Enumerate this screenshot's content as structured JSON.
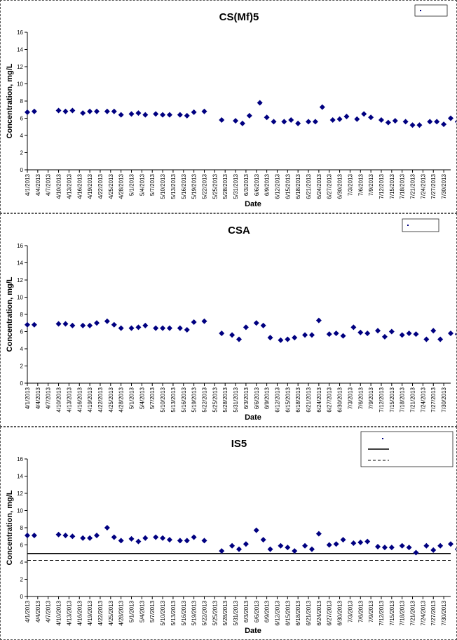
{
  "chart_data": [
    {
      "type": "scatter",
      "title": "CS(Mf)5",
      "xlabel": "Date",
      "ylabel": "Concentration, mg/L",
      "ylim": [
        0,
        16
      ],
      "yticks": [
        0,
        2,
        4,
        6,
        8,
        10,
        12,
        14,
        16
      ],
      "grid": false,
      "legend_position": "top-right",
      "xlim": [
        "4/1/2013",
        "8/1/2013"
      ],
      "xticks": [
        "4/1/2013",
        "4/4/2013",
        "4/7/2013",
        "4/10/2013",
        "4/13/2013",
        "4/16/2013",
        "4/19/2013",
        "4/22/2013",
        "4/25/2013",
        "4/28/2013",
        "5/1/2013",
        "5/4/2013",
        "5/7/2013",
        "5/10/2013",
        "5/13/2013",
        "5/16/2013",
        "5/19/2013",
        "5/22/2013",
        "5/25/2013",
        "5/28/2013",
        "5/31/2013",
        "6/3/2013",
        "6/6/2013",
        "6/9/2013",
        "6/12/2013",
        "6/15/2013",
        "6/18/2013",
        "6/21/2013",
        "6/24/2013",
        "6/27/2013",
        "6/30/2013",
        "7/3/2013",
        "7/6/2013",
        "7/9/2013",
        "7/12/2013",
        "7/15/2013",
        "7/18/2013",
        "7/21/2013",
        "7/24/2013",
        "7/27/2013",
        "7/30/2013"
      ],
      "series": [
        {
          "color": "#000080",
          "marker": "diamond",
          "points": [
            [
              "4/1/2013",
              6.7
            ],
            [
              "4/3/2013",
              6.8
            ],
            [
              "4/10/2013",
              6.9
            ],
            [
              "4/12/2013",
              6.8
            ],
            [
              "4/14/2013",
              6.9
            ],
            [
              "4/17/2013",
              6.6
            ],
            [
              "4/19/2013",
              6.8
            ],
            [
              "4/21/2013",
              6.8
            ],
            [
              "4/24/2013",
              6.8
            ],
            [
              "4/26/2013",
              6.8
            ],
            [
              "4/28/2013",
              6.4
            ],
            [
              "5/1/2013",
              6.5
            ],
            [
              "5/3/2013",
              6.6
            ],
            [
              "5/5/2013",
              6.4
            ],
            [
              "5/8/2013",
              6.5
            ],
            [
              "5/10/2013",
              6.4
            ],
            [
              "5/12/2013",
              6.4
            ],
            [
              "5/15/2013",
              6.4
            ],
            [
              "5/17/2013",
              6.3
            ],
            [
              "5/19/2013",
              6.7
            ],
            [
              "5/22/2013",
              6.8
            ],
            [
              "5/27/2013",
              5.8
            ],
            [
              "5/31/2013",
              5.7
            ],
            [
              "6/2/2013",
              5.4
            ],
            [
              "6/4/2013",
              6.3
            ],
            [
              "6/7/2013",
              7.8
            ],
            [
              "6/9/2013",
              6.1
            ],
            [
              "6/11/2013",
              5.6
            ],
            [
              "6/14/2013",
              5.6
            ],
            [
              "6/16/2013",
              5.8
            ],
            [
              "6/18/2013",
              5.4
            ],
            [
              "6/21/2013",
              5.6
            ],
            [
              "6/23/2013",
              5.6
            ],
            [
              "6/25/2013",
              7.3
            ],
            [
              "6/28/2013",
              5.8
            ],
            [
              "6/30/2013",
              5.9
            ],
            [
              "7/2/2013",
              6.2
            ],
            [
              "7/5/2013",
              5.9
            ],
            [
              "7/7/2013",
              6.5
            ],
            [
              "7/9/2013",
              6.1
            ],
            [
              "7/12/2013",
              5.8
            ],
            [
              "7/14/2013",
              5.5
            ],
            [
              "7/16/2013",
              5.7
            ],
            [
              "7/19/2013",
              5.6
            ],
            [
              "7/21/2013",
              5.2
            ],
            [
              "7/23/2013",
              5.2
            ],
            [
              "7/26/2013",
              5.6
            ],
            [
              "7/28/2013",
              5.6
            ],
            [
              "7/30/2013",
              5.3
            ],
            [
              "8/1/2013",
              6.0
            ],
            [
              "8/3/2013",
              5.6
            ]
          ]
        }
      ]
    },
    {
      "type": "scatter",
      "title": "CSA",
      "xlabel": "Date",
      "ylabel": "Concentration, mg/L",
      "ylim": [
        0,
        16
      ],
      "yticks": [
        0,
        2,
        4,
        6,
        8,
        10,
        12,
        14,
        16
      ],
      "grid": false,
      "legend_position": "top-right",
      "xlim": [
        "4/1/2013",
        "8/1/2013"
      ],
      "xticks": [
        "4/1/2013",
        "4/4/2013",
        "4/7/2013",
        "4/10/2013",
        "4/13/2013",
        "4/16/2013",
        "4/19/2013",
        "4/22/2013",
        "4/25/2013",
        "4/28/2013",
        "5/1/2013",
        "5/4/2013",
        "5/7/2013",
        "5/10/2013",
        "5/13/2013",
        "5/16/2013",
        "5/19/2013",
        "5/22/2013",
        "5/25/2013",
        "5/28/2013",
        "5/31/2013",
        "6/3/2013",
        "6/6/2013",
        "6/9/2013",
        "6/12/2013",
        "6/15/2013",
        "6/18/2013",
        "6/21/2013",
        "6/24/2013",
        "6/27/2013",
        "6/30/2013",
        "7/3/2013",
        "7/6/2013",
        "7/9/2013",
        "7/12/2013",
        "7/15/2013",
        "7/18/2013",
        "7/21/2013",
        "7/24/2013",
        "7/27/2013",
        "7/30/2013"
      ],
      "series": [
        {
          "color": "#000080",
          "marker": "diamond",
          "points": [
            [
              "4/1/2013",
              6.8
            ],
            [
              "4/3/2013",
              6.8
            ],
            [
              "4/10/2013",
              6.9
            ],
            [
              "4/12/2013",
              6.9
            ],
            [
              "4/14/2013",
              6.7
            ],
            [
              "4/17/2013",
              6.7
            ],
            [
              "4/19/2013",
              6.7
            ],
            [
              "4/21/2013",
              7.0
            ],
            [
              "4/24/2013",
              7.2
            ],
            [
              "4/26/2013",
              6.8
            ],
            [
              "4/28/2013",
              6.4
            ],
            [
              "5/1/2013",
              6.4
            ],
            [
              "5/3/2013",
              6.5
            ],
            [
              "5/5/2013",
              6.7
            ],
            [
              "5/8/2013",
              6.4
            ],
            [
              "5/10/2013",
              6.4
            ],
            [
              "5/12/2013",
              6.4
            ],
            [
              "5/15/2013",
              6.4
            ],
            [
              "5/17/2013",
              6.2
            ],
            [
              "5/19/2013",
              7.1
            ],
            [
              "5/22/2013",
              7.2
            ],
            [
              "5/27/2013",
              5.8
            ],
            [
              "5/30/2013",
              5.6
            ],
            [
              "6/1/2013",
              5.1
            ],
            [
              "6/3/2013",
              6.5
            ],
            [
              "6/6/2013",
              7.0
            ],
            [
              "6/8/2013",
              6.7
            ],
            [
              "6/10/2013",
              5.3
            ],
            [
              "6/13/2013",
              5.0
            ],
            [
              "6/15/2013",
              5.1
            ],
            [
              "6/17/2013",
              5.3
            ],
            [
              "6/20/2013",
              5.6
            ],
            [
              "6/22/2013",
              5.6
            ],
            [
              "6/24/2013",
              7.3
            ],
            [
              "6/27/2013",
              5.7
            ],
            [
              "6/29/2013",
              5.8
            ],
            [
              "7/1/2013",
              5.5
            ],
            [
              "7/4/2013",
              6.5
            ],
            [
              "7/6/2013",
              5.9
            ],
            [
              "7/8/2013",
              5.8
            ],
            [
              "7/11/2013",
              6.1
            ],
            [
              "7/13/2013",
              5.4
            ],
            [
              "7/15/2013",
              6.0
            ],
            [
              "7/18/2013",
              5.6
            ],
            [
              "7/20/2013",
              5.8
            ],
            [
              "7/22/2013",
              5.7
            ],
            [
              "7/25/2013",
              5.1
            ],
            [
              "7/27/2013",
              6.1
            ],
            [
              "7/29/2013",
              5.1
            ],
            [
              "8/1/2013",
              5.8
            ],
            [
              "8/3/2013",
              5.7
            ]
          ]
        }
      ]
    },
    {
      "type": "scatter",
      "title": "IS5",
      "xlabel": "Date",
      "ylabel": "Concentration, mg/L",
      "ylim": [
        0,
        16
      ],
      "yticks": [
        0,
        2,
        4,
        6,
        8,
        10,
        12,
        14,
        16
      ],
      "grid": false,
      "legend_position": "top-right",
      "xlim": [
        "4/1/2013",
        "8/1/2013"
      ],
      "xticks": [
        "4/1/2013",
        "4/4/2013",
        "4/7/2013",
        "4/10/2013",
        "4/13/2013",
        "4/16/2013",
        "4/19/2013",
        "4/22/2013",
        "4/25/2013",
        "4/28/2013",
        "5/1/2013",
        "5/4/2013",
        "5/7/2013",
        "5/10/2013",
        "5/13/2013",
        "5/16/2013",
        "5/19/2013",
        "5/22/2013",
        "5/25/2013",
        "5/28/2013",
        "5/31/2013",
        "6/3/2013",
        "6/6/2013",
        "6/9/2013",
        "6/12/2013",
        "6/15/2013",
        "6/18/2013",
        "6/21/2013",
        "6/24/2013",
        "6/27/2013",
        "6/30/2013",
        "7/3/2013",
        "7/6/2013",
        "7/9/2013",
        "7/12/2013",
        "7/15/2013",
        "7/18/2013",
        "7/21/2013",
        "7/24/2013",
        "7/27/2013",
        "7/30/2013"
      ],
      "reference_lines": [
        {
          "y": 5.0,
          "style": "solid",
          "color": "#000000"
        },
        {
          "y": 4.2,
          "style": "dashed",
          "color": "#000000"
        }
      ],
      "series": [
        {
          "color": "#000080",
          "marker": "diamond",
          "points": [
            [
              "4/1/2013",
              7.1
            ],
            [
              "4/3/2013",
              7.1
            ],
            [
              "4/10/2013",
              7.2
            ],
            [
              "4/12/2013",
              7.1
            ],
            [
              "4/14/2013",
              7.0
            ],
            [
              "4/17/2013",
              6.8
            ],
            [
              "4/19/2013",
              6.8
            ],
            [
              "4/21/2013",
              7.1
            ],
            [
              "4/24/2013",
              8.0
            ],
            [
              "4/26/2013",
              6.9
            ],
            [
              "4/28/2013",
              6.5
            ],
            [
              "5/1/2013",
              6.7
            ],
            [
              "5/3/2013",
              6.4
            ],
            [
              "5/5/2013",
              6.8
            ],
            [
              "5/8/2013",
              6.9
            ],
            [
              "5/10/2013",
              6.8
            ],
            [
              "5/12/2013",
              6.6
            ],
            [
              "5/15/2013",
              6.5
            ],
            [
              "5/17/2013",
              6.5
            ],
            [
              "5/19/2013",
              6.9
            ],
            [
              "5/22/2013",
              6.5
            ],
            [
              "5/27/2013",
              5.3
            ],
            [
              "5/30/2013",
              5.9
            ],
            [
              "6/1/2013",
              5.5
            ],
            [
              "6/3/2013",
              6.1
            ],
            [
              "6/6/2013",
              7.7
            ],
            [
              "6/8/2013",
              6.6
            ],
            [
              "6/10/2013",
              5.5
            ],
            [
              "6/13/2013",
              5.9
            ],
            [
              "6/15/2013",
              5.7
            ],
            [
              "6/17/2013",
              5.3
            ],
            [
              "6/20/2013",
              5.9
            ],
            [
              "6/22/2013",
              5.5
            ],
            [
              "6/24/2013",
              7.3
            ],
            [
              "6/27/2013",
              6.0
            ],
            [
              "6/29/2013",
              6.1
            ],
            [
              "7/1/2013",
              6.6
            ],
            [
              "7/4/2013",
              6.2
            ],
            [
              "7/6/2013",
              6.3
            ],
            [
              "7/8/2013",
              6.4
            ],
            [
              "7/11/2013",
              5.8
            ],
            [
              "7/13/2013",
              5.7
            ],
            [
              "7/15/2013",
              5.7
            ],
            [
              "7/18/2013",
              5.9
            ],
            [
              "7/20/2013",
              5.7
            ],
            [
              "7/22/2013",
              5.1
            ],
            [
              "7/25/2013",
              5.9
            ],
            [
              "7/27/2013",
              5.4
            ],
            [
              "7/29/2013",
              5.9
            ],
            [
              "8/1/2013",
              6.1
            ],
            [
              "8/3/2013",
              5.5
            ]
          ]
        }
      ]
    }
  ]
}
